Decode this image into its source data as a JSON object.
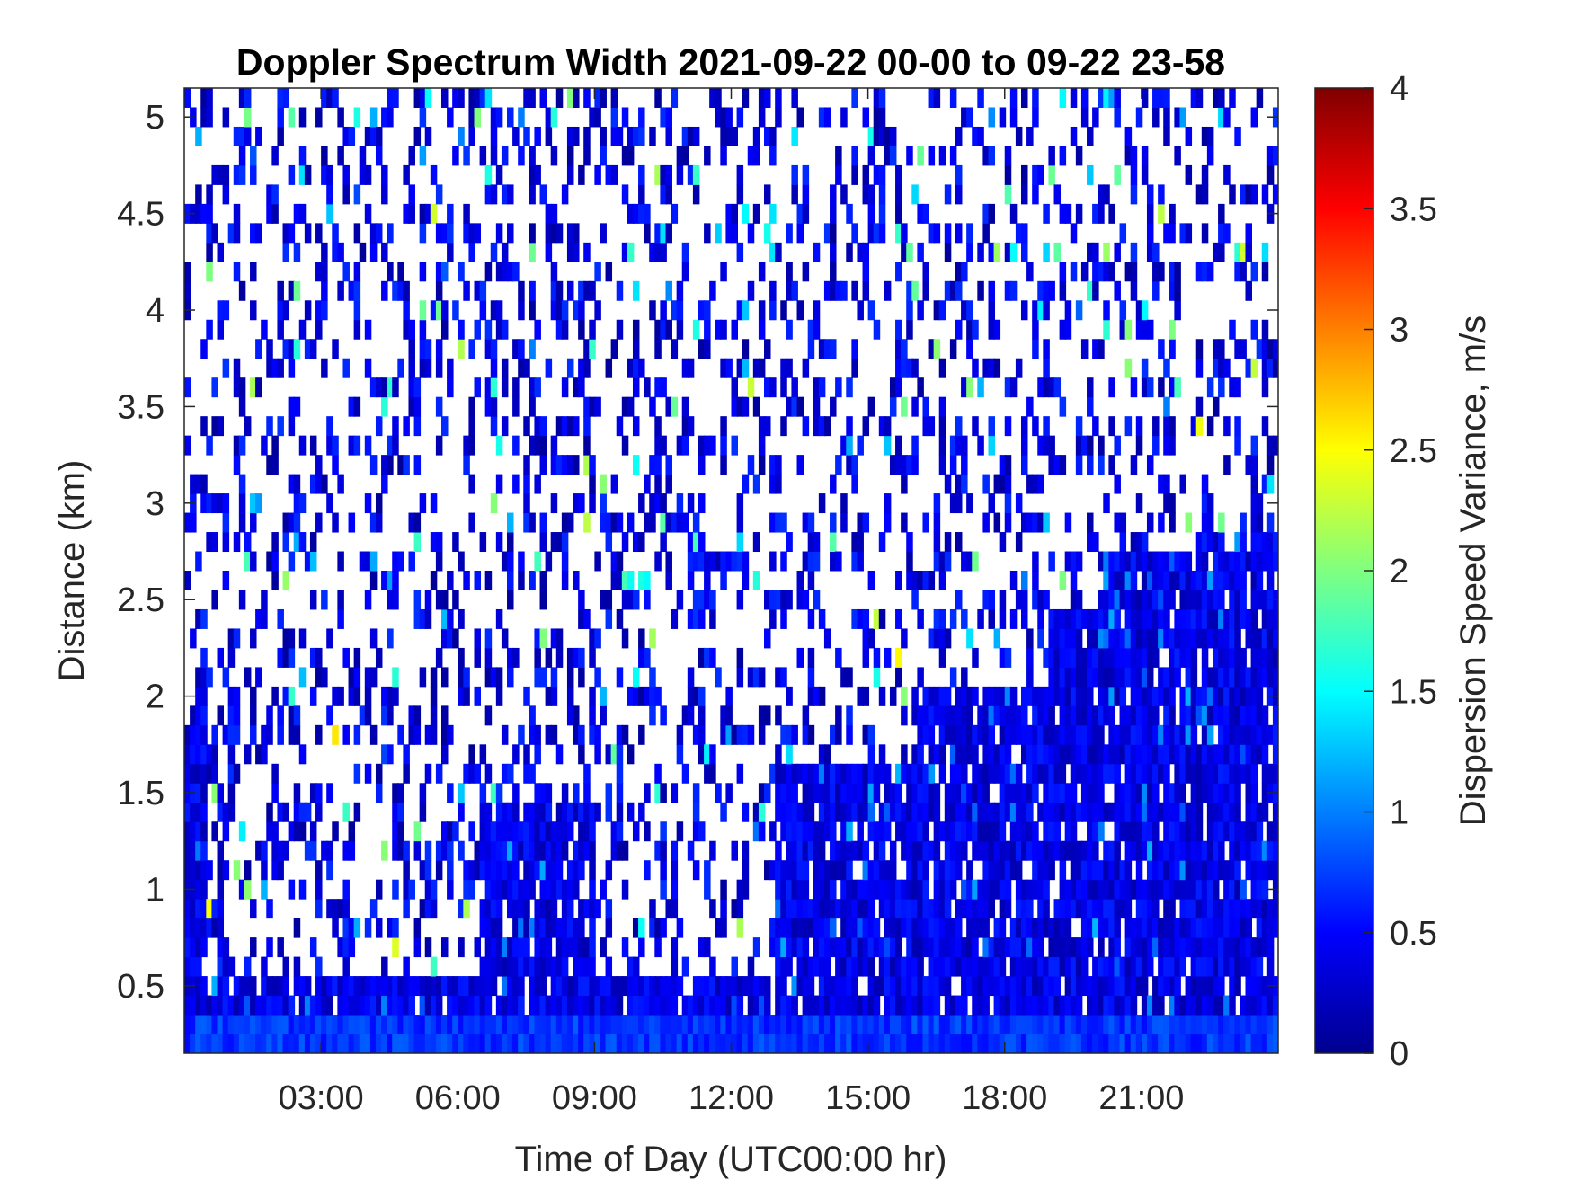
{
  "chart_data": {
    "type": "heatmap",
    "title": "Doppler Spectrum Width 2021-09-22 00-00 to 09-22 23-58",
    "xlabel": "Time of Day (UTC00:00 hr)",
    "ylabel": "Distance (km)",
    "colorbar_label": "Dispersion Speed Variance, m/s",
    "colormap": "jet",
    "xlim_hours": [
      0,
      24
    ],
    "ylim_km": [
      0.15,
      5.15
    ],
    "clim": [
      0,
      4
    ],
    "x_ticks": [
      {
        "hour": 3,
        "label": "03:00"
      },
      {
        "hour": 6,
        "label": "06:00"
      },
      {
        "hour": 9,
        "label": "09:00"
      },
      {
        "hour": 12,
        "label": "12:00"
      },
      {
        "hour": 15,
        "label": "15:00"
      },
      {
        "hour": 18,
        "label": "18:00"
      },
      {
        "hour": 21,
        "label": "21:00"
      }
    ],
    "y_ticks": [
      {
        "value": 0.5,
        "label": "0.5"
      },
      {
        "value": 1,
        "label": "1"
      },
      {
        "value": 1.5,
        "label": "1.5"
      },
      {
        "value": 2,
        "label": "2"
      },
      {
        "value": 2.5,
        "label": "2.5"
      },
      {
        "value": 3,
        "label": "3"
      },
      {
        "value": 3.5,
        "label": "3.5"
      },
      {
        "value": 4,
        "label": "4"
      },
      {
        "value": 4.5,
        "label": "4.5"
      },
      {
        "value": 5,
        "label": "5"
      }
    ],
    "colorbar_ticks": [
      {
        "value": 0,
        "label": "0"
      },
      {
        "value": 0.5,
        "label": "0.5"
      },
      {
        "value": 1,
        "label": "1"
      },
      {
        "value": 1.5,
        "label": "1.5"
      },
      {
        "value": 2,
        "label": "2"
      },
      {
        "value": 2.5,
        "label": "2.5"
      },
      {
        "value": 3,
        "label": "3"
      },
      {
        "value": 3.5,
        "label": "3.5"
      },
      {
        "value": 4,
        "label": "4"
      }
    ],
    "dense_layer_top_km": [
      {
        "from_hour": 0.0,
        "to_hour": 0.5,
        "top_km": 1.95
      },
      {
        "from_hour": 0.5,
        "to_hour": 3.0,
        "top_km": 0.55
      },
      {
        "from_hour": 3.0,
        "to_hour": 6.5,
        "top_km": 0.6
      },
      {
        "from_hour": 6.5,
        "to_hour": 9.0,
        "top_km": 1.5
      },
      {
        "from_hour": 9.0,
        "to_hour": 13.0,
        "top_km": 0.6
      },
      {
        "from_hour": 13.0,
        "to_hour": 16.0,
        "top_km": 1.7
      },
      {
        "from_hour": 16.0,
        "to_hour": 19.0,
        "top_km": 2.05
      },
      {
        "from_hour": 19.0,
        "to_hour": 20.0,
        "top_km": 2.45
      },
      {
        "from_hour": 20.0,
        "to_hour": 22.2,
        "top_km": 2.75
      },
      {
        "from_hour": 22.2,
        "to_hour": 24.0,
        "top_km": 2.85
      }
    ],
    "typical_values_m_s": {
      "near_ground": 0.7,
      "dense_layer": 0.4,
      "sparse_upper": 0.4
    }
  }
}
